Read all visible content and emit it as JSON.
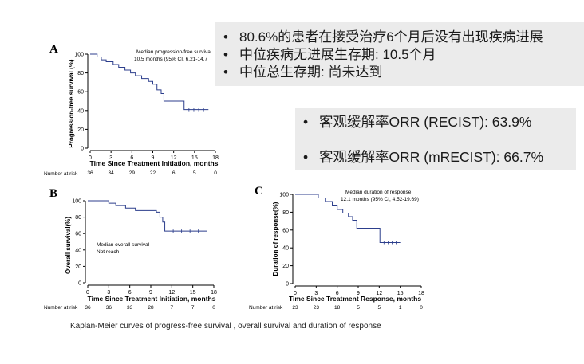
{
  "panel_a": {
    "letter": "A",
    "ylabel": "Progression-free survival (%)",
    "xlabel": "Time Since Treatment Initiation, months",
    "annotation_line1": "Median progression-free surviva",
    "annotation_line2": "10.5 months (95% CI, 6.21-14.7",
    "risk_label": "Number at risk",
    "risk_values": [
      "36",
      "34",
      "29",
      "22",
      "6",
      "5",
      "0"
    ]
  },
  "panel_b": {
    "letter": "B",
    "ylabel": "Overall survival(%)",
    "xlabel": "Time Since Treatment Initiation, months",
    "annotation_line1": "Median overall survival",
    "annotation_line2": "Not reach",
    "risk_label": "Number at risk",
    "risk_values": [
      "36",
      "36",
      "33",
      "28",
      "7",
      "7",
      "0"
    ]
  },
  "panel_c": {
    "letter": "C",
    "ylabel": "Duration of response(%)",
    "xlabel": "Time Since Treatment Response, months",
    "annotation_line1": "Median duration of response",
    "annotation_line2": "12.1 months (95% CI, 4.52-19.69)",
    "risk_label": "Number at risk",
    "risk_values": [
      "23",
      "23",
      "18",
      "5",
      "5",
      "1",
      "0"
    ]
  },
  "callouts": {
    "top": [
      "80.6%的患者在接受治疗6个月后没有出现疾病进展",
      "中位疾病无进展生存期: 10.5个月",
      "中位总生存期: 尚未达到"
    ],
    "right": [
      "客观缓解率ORR (RECIST): 63.9%",
      "客观缓解率ORR (mRECIST): 66.7%"
    ]
  },
  "caption": "Kaplan-Meier curves of progress-free survival , overall survival and duration of response",
  "colors": {
    "curve": "#2c3e8c",
    "axis": "#000000",
    "callout_bg": "#ebebeb"
  },
  "chart_data": [
    {
      "type": "line",
      "title": "",
      "xlabel": "Time Since Treatment Initiation, months",
      "ylabel": "Progression-free survival (%)",
      "xlim": [
        0,
        18
      ],
      "ylim": [
        0,
        100
      ],
      "xticks": [
        0,
        3,
        6,
        9,
        12,
        15,
        18
      ],
      "yticks": [
        0,
        20,
        40,
        60,
        80,
        100
      ],
      "grid": false,
      "series": [
        {
          "x": [
            0,
            1,
            1.6,
            2.3,
            3.3,
            4.1,
            5.0,
            5.8,
            6.5,
            7.4,
            8.4,
            9.0,
            9.6,
            10.2,
            10.6,
            13.5,
            17.0
          ],
          "y": [
            100,
            97,
            94,
            92,
            89,
            86,
            83,
            80,
            77,
            74,
            71,
            68,
            62,
            58,
            50,
            41,
            41
          ]
        }
      ]
    },
    {
      "type": "line",
      "title": "",
      "xlabel": "Time Since Treatment Initiation, months",
      "ylabel": "Overall survival(%)",
      "xlim": [
        0,
        18
      ],
      "ylim": [
        0,
        100
      ],
      "xticks": [
        0,
        3,
        6,
        9,
        12,
        15,
        18
      ],
      "yticks": [
        0,
        20,
        40,
        60,
        80,
        100
      ],
      "grid": false,
      "series": [
        {
          "x": [
            0,
            3.0,
            4.0,
            5.4,
            6.8,
            9.8,
            10.3,
            10.7,
            11.0,
            17.0
          ],
          "y": [
            100,
            97,
            94,
            91,
            88,
            86,
            80,
            74,
            63,
            63
          ]
        }
      ]
    },
    {
      "type": "line",
      "title": "",
      "xlabel": "Time Since Treatment Response, months",
      "ylabel": "Duration of response(%)",
      "xlim": [
        0,
        18
      ],
      "ylim": [
        0,
        100
      ],
      "xticks": [
        0,
        3,
        6,
        9,
        12,
        15,
        18
      ],
      "yticks": [
        0,
        20,
        40,
        60,
        80,
        100
      ],
      "grid": false,
      "series": [
        {
          "x": [
            0,
            3.3,
            4.3,
            5.3,
            6.0,
            6.8,
            7.6,
            8.2,
            8.8,
            12.1,
            15.0
          ],
          "y": [
            100,
            96,
            92,
            87,
            83,
            79,
            75,
            71,
            62,
            46,
            46
          ]
        }
      ]
    }
  ]
}
